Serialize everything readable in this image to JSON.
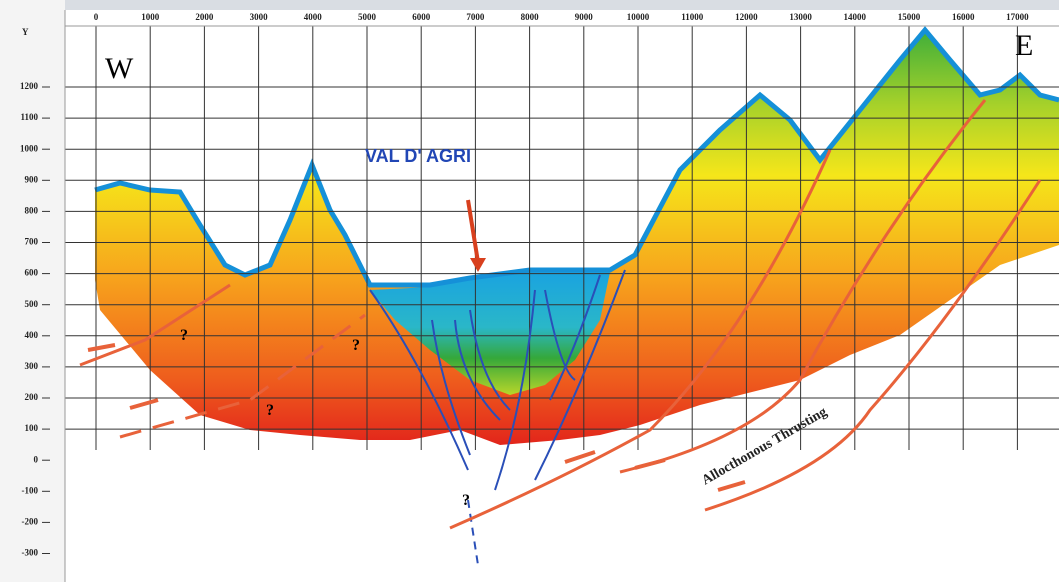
{
  "axes": {
    "y_label": "Y",
    "x_ticks": [
      "0",
      "1000",
      "2000",
      "3000",
      "4000",
      "5000",
      "6000",
      "7000",
      "8000",
      "9000",
      "10000",
      "11000",
      "12000",
      "13000",
      "14000",
      "15000",
      "16000",
      "17000"
    ],
    "y_ticks": [
      "1200",
      "1100",
      "1000",
      "900",
      "800",
      "700",
      "600",
      "500",
      "400",
      "300",
      "200",
      "100",
      "0",
      "-100",
      "-200",
      "-300"
    ]
  },
  "labels": {
    "west": "W",
    "east": "E",
    "valley": "VAL D' AGRI",
    "thrusting": "Allocthonous Thrusting",
    "question_marks": [
      "?",
      "?",
      "?",
      "?"
    ]
  }
}
